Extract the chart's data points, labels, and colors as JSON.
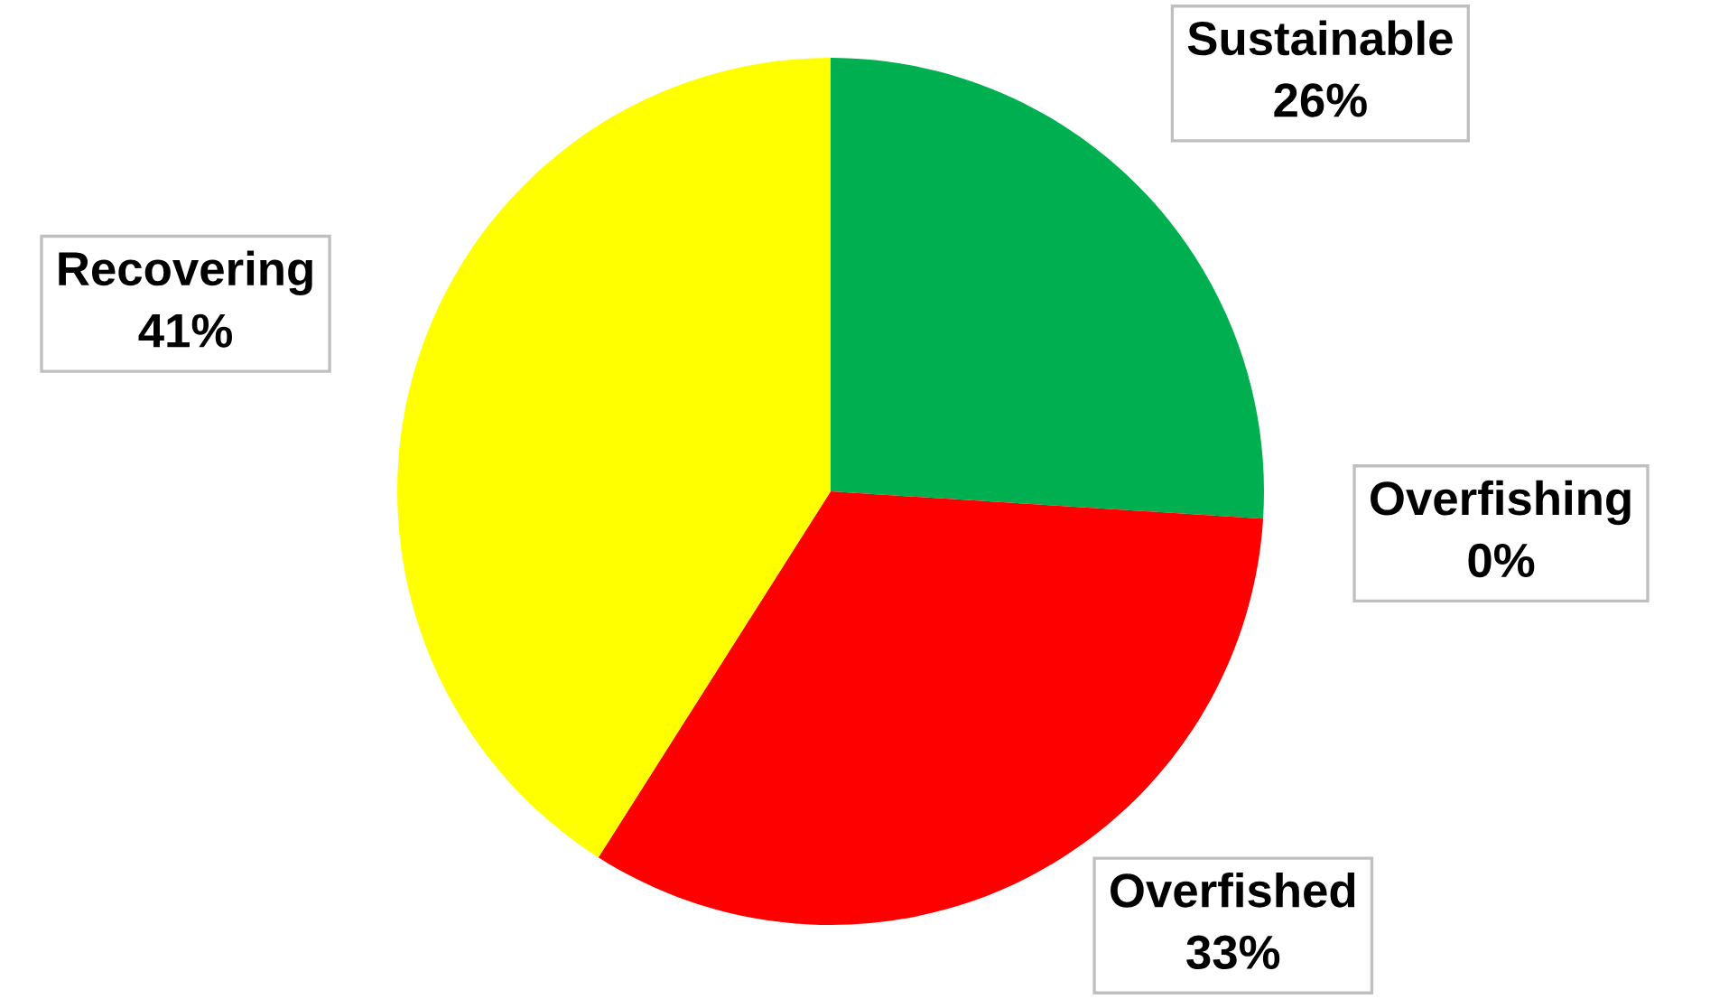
{
  "chart_data": {
    "type": "pie",
    "categories": [
      "Sustainable",
      "Overfishing",
      "Overfished",
      "Recovering"
    ],
    "values": [
      26,
      0,
      33,
      41
    ],
    "value_labels": [
      "26%",
      "0%",
      "33%",
      "41%"
    ],
    "colors": [
      "#00b050",
      null,
      "#ff0000",
      "#ffff00"
    ],
    "legend": false
  }
}
